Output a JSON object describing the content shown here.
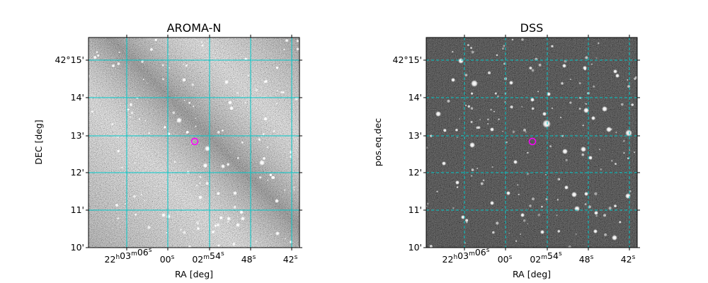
{
  "panels": [
    {
      "title": "AROMA-N",
      "xlabel": "RA [deg]",
      "ylabel": "DEC [deg]",
      "style": "noisy-gray",
      "dec_ticks": [
        "42°15'",
        "14'",
        "13'",
        "12'",
        "11'",
        "10'"
      ],
      "ra_ticks": [
        "22h03m06s",
        "00s",
        "02m54s",
        "48s",
        "42s"
      ],
      "grid_color": "#00c8c8",
      "grid": "solid",
      "marker_color": "#ff00ff"
    },
    {
      "title": "DSS",
      "xlabel": "RA [deg]",
      "ylabel": "pos.eq.dec",
      "style": "dark-stars",
      "dec_ticks": [
        "42°15'",
        "14'",
        "13'",
        "12'",
        "11'",
        "10'"
      ],
      "ra_ticks": [
        "22h03m06s",
        "00s",
        "02m54s",
        "48s",
        "42s"
      ],
      "grid_color": "#00c8c8",
      "grid": "dashed",
      "marker_color": "#ff00ff"
    }
  ]
}
